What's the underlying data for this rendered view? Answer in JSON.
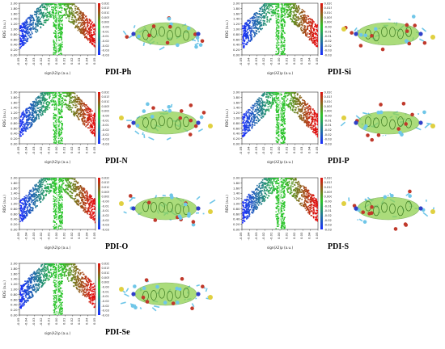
{
  "chart_data": [
    {
      "type": "scatter",
      "molecule": "PDI-Ph",
      "xlabel": "sign(λ2)ρ (a.u.)",
      "ylabel": "RDG (a.u.)",
      "xlim": [
        -0.05,
        0.05
      ],
      "ylim": [
        0,
        2.0
      ],
      "xticks": [
        "-0.05",
        "-0.04",
        "-0.03",
        "-0.02",
        "-0.01",
        "0.00",
        "0.01",
        "0.02",
        "0.03",
        "0.04",
        "0.05"
      ],
      "yticks": [
        "2.00",
        "1.80",
        "1.60",
        "1.40",
        "1.20",
        "1.00",
        "0.80",
        "0.60",
        "0.40",
        "0.20",
        "0.00"
      ],
      "colorbar_ticks": [
        "0.020",
        "0.015",
        "0.010",
        "0.005",
        "0.000",
        "-0.005",
        "-0.010",
        "-0.015",
        "-0.020",
        "-0.025",
        "-0.030",
        "-0.035"
      ],
      "colorbar_range": [
        -0.035,
        0.02
      ]
    },
    {
      "type": "scatter",
      "molecule": "PDI-Si",
      "xlabel": "sign(λ2)ρ (a.u.)",
      "ylabel": "RDG (a.u.)",
      "xlim": [
        -0.05,
        0.05
      ],
      "ylim": [
        0,
        2.0
      ],
      "xticks": [
        "-0.05",
        "-0.04",
        "-0.03",
        "-0.02",
        "-0.01",
        "0.00",
        "0.01",
        "0.02",
        "0.03",
        "0.04",
        "0.05"
      ],
      "yticks": [
        "2.00",
        "1.80",
        "1.60",
        "1.40",
        "1.20",
        "1.00",
        "0.80",
        "0.60",
        "0.40",
        "0.20",
        "0.00"
      ],
      "colorbar_ticks": [
        "0.020",
        "0.015",
        "0.010",
        "0.005",
        "0.000",
        "-0.005",
        "-0.010",
        "-0.015",
        "-0.020",
        "-0.025",
        "-0.030",
        "-0.035"
      ],
      "colorbar_range": [
        -0.035,
        0.02
      ]
    },
    {
      "type": "scatter",
      "molecule": "PDI-N",
      "xlabel": "sign(λ2)ρ (a.u.)",
      "ylabel": "RDG (a.u.)",
      "xlim": [
        -0.05,
        0.05
      ],
      "ylim": [
        0,
        2.0
      ],
      "xticks": [
        "-0.05",
        "-0.04",
        "-0.03",
        "-0.02",
        "-0.01",
        "0.00",
        "0.01",
        "0.02",
        "0.03",
        "0.04",
        "0.05"
      ],
      "yticks": [
        "2.00",
        "1.80",
        "1.60",
        "1.40",
        "1.20",
        "1.00",
        "0.80",
        "0.60",
        "0.40",
        "0.20",
        "0.00"
      ],
      "colorbar_ticks": [
        "0.020",
        "0.015",
        "0.010",
        "0.005",
        "0.000",
        "-0.005",
        "-0.010",
        "-0.015",
        "-0.020",
        "-0.025",
        "-0.030",
        "-0.035"
      ],
      "colorbar_range": [
        -0.035,
        0.02
      ]
    },
    {
      "type": "scatter",
      "molecule": "PDI-P",
      "xlabel": "sign(λ2)ρ (a.u.)",
      "ylabel": "RDG (a.u.)",
      "xlim": [
        -0.05,
        0.05
      ],
      "ylim": [
        0,
        2.0
      ],
      "xticks": [
        "-0.05",
        "-0.04",
        "-0.03",
        "-0.02",
        "-0.01",
        "0.00",
        "0.01",
        "0.02",
        "0.03",
        "0.04",
        "0.05"
      ],
      "yticks": [
        "2.00",
        "1.80",
        "1.60",
        "1.40",
        "1.20",
        "1.00",
        "0.80",
        "0.60",
        "0.40",
        "0.20",
        "0.00"
      ],
      "colorbar_ticks": [
        "0.020",
        "0.015",
        "0.010",
        "0.005",
        "0.000",
        "-0.005",
        "-0.010",
        "-0.015",
        "-0.020",
        "-0.025",
        "-0.030",
        "-0.035"
      ],
      "colorbar_range": [
        -0.035,
        0.02
      ]
    },
    {
      "type": "scatter",
      "molecule": "PDI-O",
      "xlabel": "sign(λ2)ρ (a.u.)",
      "ylabel": "RDG (a.u.)",
      "xlim": [
        -0.05,
        0.05
      ],
      "ylim": [
        0,
        2.0
      ],
      "xticks": [
        "-0.05",
        "-0.04",
        "-0.03",
        "-0.02",
        "-0.01",
        "0.00",
        "0.01",
        "0.02",
        "0.03",
        "0.04",
        "0.05"
      ],
      "yticks": [
        "2.00",
        "1.80",
        "1.60",
        "1.40",
        "1.20",
        "1.00",
        "0.80",
        "0.60",
        "0.40",
        "0.20",
        "0.00"
      ],
      "colorbar_ticks": [
        "0.020",
        "0.015",
        "0.010",
        "0.005",
        "0.000",
        "-0.005",
        "-0.010",
        "-0.015",
        "-0.020",
        "-0.025",
        "-0.030",
        "-0.035"
      ],
      "colorbar_range": [
        -0.035,
        0.02
      ]
    },
    {
      "type": "scatter",
      "molecule": "PDI-S",
      "xlabel": "sign(λ2)ρ (a.u.)",
      "ylabel": "RDG (a.u.)",
      "xlim": [
        -0.05,
        0.05
      ],
      "ylim": [
        0,
        2.0
      ],
      "xticks": [
        "-0.05",
        "-0.04",
        "-0.03",
        "-0.02",
        "-0.01",
        "0.00",
        "0.01",
        "0.02",
        "0.03",
        "0.04",
        "0.05"
      ],
      "yticks": [
        "2.00",
        "1.80",
        "1.60",
        "1.40",
        "1.20",
        "1.00",
        "0.80",
        "0.60",
        "0.40",
        "0.20",
        "0.00"
      ],
      "colorbar_ticks": [
        "0.020",
        "0.015",
        "0.010",
        "0.005",
        "0.000",
        "-0.005",
        "-0.010",
        "-0.015",
        "-0.020",
        "-0.025",
        "-0.030",
        "-0.035"
      ],
      "colorbar_range": [
        -0.035,
        0.02
      ]
    },
    {
      "type": "scatter",
      "molecule": "PDI-Se",
      "xlabel": "sign(λ2)ρ (a.u.)",
      "ylabel": "RDG (a.u.)",
      "xlim": [
        -0.05,
        0.05
      ],
      "ylim": [
        0,
        2.0
      ],
      "xticks": [
        "-0.05",
        "-0.04",
        "-0.03",
        "-0.02",
        "-0.01",
        "0.00",
        "0.01",
        "0.02",
        "0.03",
        "0.04",
        "0.05"
      ],
      "yticks": [
        "2.00",
        "1.80",
        "1.60",
        "1.40",
        "1.20",
        "1.00",
        "0.80",
        "0.60",
        "0.40",
        "0.20",
        "0.00"
      ],
      "colorbar_ticks": [
        "0.020",
        "0.015",
        "0.010",
        "0.005",
        "0.000",
        "-0.005",
        "-0.010",
        "-0.015",
        "-0.020",
        "-0.025",
        "-0.030",
        "-0.035"
      ],
      "colorbar_range": [
        -0.035,
        0.02
      ]
    }
  ],
  "colors": {
    "scatter_blue": "#1a2cff",
    "scatter_green": "#2bc42b",
    "scatter_red": "#e01010",
    "isosurface_green": "#8fd14f",
    "atom_carbon": "#6fc6e8",
    "atom_oxygen": "#c0392b",
    "atom_nitrogen": "#3040c8",
    "atom_heteroatom": "#e0d040"
  }
}
